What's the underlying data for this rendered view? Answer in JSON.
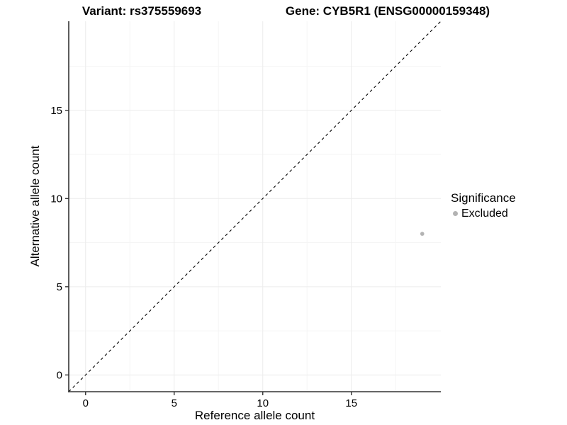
{
  "titles": {
    "variant": "Variant: rs375559693",
    "gene": "Gene: CYB5R1 (ENSG00000159348)"
  },
  "axes": {
    "x_label": "Reference allele count",
    "y_label": "Alternative allele count"
  },
  "legend": {
    "title": "Significance",
    "entries": [
      {
        "label": "Excluded",
        "color": "#b3b3b3"
      }
    ]
  },
  "chart_data": {
    "type": "scatter",
    "title": "Variant: rs375559693 | Gene: CYB5R1 (ENSG00000159348)",
    "xlabel": "Reference allele count",
    "ylabel": "Alternative allele count",
    "xlim": [
      -0.95,
      20.05
    ],
    "ylim": [
      -0.95,
      20.05
    ],
    "xticks": [
      0,
      5,
      10,
      15
    ],
    "yticks": [
      0,
      5,
      10,
      15
    ],
    "minor_ticks": [
      2.5,
      7.5,
      12.5,
      17.5
    ],
    "grid": "major+minor",
    "legend_position": "right",
    "series": [
      {
        "name": "Excluded",
        "color": "#b3b3b3",
        "points": [
          {
            "x": 19,
            "y": 8
          }
        ]
      }
    ],
    "reference_line": {
      "type": "identity",
      "slope": 1,
      "intercept": 0,
      "style": "dashed",
      "color": "#000000"
    },
    "colors": {
      "background": "#ffffff",
      "grid_major": "#ececec",
      "grid_minor": "#f5f5f5",
      "axis": "#333333",
      "tick_text": "#000000"
    },
    "tick_font_size": 15
  }
}
